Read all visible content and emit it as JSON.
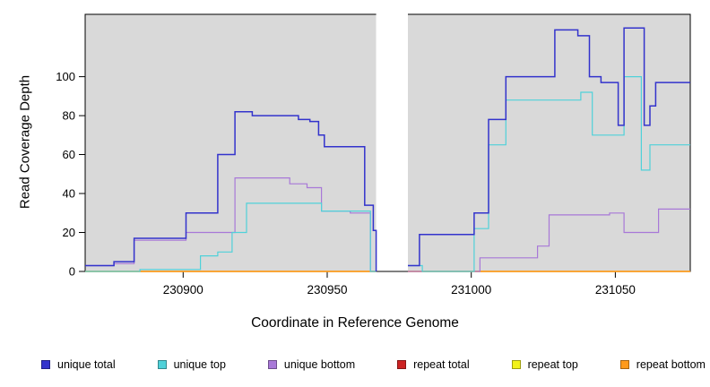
{
  "chart_data": {
    "type": "line",
    "step": true,
    "title": "",
    "xlabel": "Coordinate in Reference Genome",
    "ylabel": "Read Coverage Depth",
    "xlim": [
      230866,
      231076
    ],
    "ylim": [
      0,
      132
    ],
    "xticks": [
      230900,
      230950,
      231000,
      231050
    ],
    "yticks": [
      0,
      20,
      40,
      60,
      80,
      100
    ],
    "gap": [
      230967,
      230978
    ],
    "plot_bg": "#d9d9d9",
    "axis_color": "#000000",
    "legend_position": "bottom",
    "grid": false,
    "draw_order": [
      3,
      4,
      5,
      2,
      1,
      0
    ],
    "series": [
      {
        "name": "unique total",
        "color": "#3333cc",
        "w": 1.5,
        "segments": [
          [
            [
              230866,
              3
            ],
            [
              230876,
              5
            ],
            [
              230883,
              17
            ],
            [
              230901,
              30
            ],
            [
              230912,
              60
            ],
            [
              230918,
              82
            ],
            [
              230924,
              80
            ],
            [
              230940,
              78
            ],
            [
              230944,
              77
            ],
            [
              230947,
              70
            ],
            [
              230949,
              64
            ],
            [
              230963,
              34
            ],
            [
              230966,
              21
            ],
            [
              230967,
              0
            ]
          ],
          [
            [
              230978,
              3
            ],
            [
              230982,
              19
            ],
            [
              231001,
              30
            ],
            [
              231006,
              78
            ],
            [
              231012,
              100
            ],
            [
              231029,
              124
            ],
            [
              231037,
              121
            ],
            [
              231041,
              100
            ],
            [
              231045,
              97
            ],
            [
              231051,
              75
            ],
            [
              231053,
              125
            ],
            [
              231060,
              75
            ],
            [
              231062,
              85
            ],
            [
              231064,
              97
            ],
            [
              231076,
              97
            ]
          ]
        ]
      },
      {
        "name": "unique top",
        "color": "#4fd1d9",
        "w": 1.2,
        "segments": [
          [
            [
              230866,
              0
            ],
            [
              230885,
              1
            ],
            [
              230906,
              8
            ],
            [
              230912,
              10
            ],
            [
              230917,
              20
            ],
            [
              230922,
              35
            ],
            [
              230948,
              31
            ],
            [
              230965,
              0
            ],
            [
              230967,
              0
            ]
          ],
          [
            [
              230978,
              3
            ],
            [
              230983,
              0
            ],
            [
              231001,
              22
            ],
            [
              231006,
              65
            ],
            [
              231012,
              88
            ],
            [
              231038,
              92
            ],
            [
              231042,
              70
            ],
            [
              231053,
              100
            ],
            [
              231059,
              52
            ],
            [
              231062,
              65
            ],
            [
              231076,
              65
            ]
          ]
        ]
      },
      {
        "name": "unique bottom",
        "color": "#a878d8",
        "w": 1.2,
        "segments": [
          [
            [
              230866,
              3
            ],
            [
              230876,
              4
            ],
            [
              230883,
              16
            ],
            [
              230901,
              20
            ],
            [
              230918,
              48
            ],
            [
              230937,
              45
            ],
            [
              230943,
              43
            ],
            [
              230948,
              31
            ],
            [
              230958,
              30
            ],
            [
              230965,
              0
            ],
            [
              230967,
              0
            ]
          ],
          [
            [
              230978,
              0
            ],
            [
              231003,
              7
            ],
            [
              231023,
              13
            ],
            [
              231027,
              29
            ],
            [
              231048,
              30
            ],
            [
              231053,
              20
            ],
            [
              231065,
              32
            ],
            [
              231076,
              32
            ]
          ]
        ]
      },
      {
        "name": "repeat total",
        "color": "#cc2222",
        "w": 1.2,
        "segments": [
          [
            [
              230866,
              0
            ],
            [
              230967,
              0
            ]
          ],
          [
            [
              230978,
              0
            ],
            [
              231076,
              0
            ]
          ]
        ]
      },
      {
        "name": "repeat top",
        "color": "#f2f218",
        "w": 1.2,
        "segments": [
          [
            [
              230866,
              0
            ],
            [
              230967,
              0
            ]
          ],
          [
            [
              230978,
              0
            ],
            [
              231076,
              0
            ]
          ]
        ]
      },
      {
        "name": "repeat bottom",
        "color": "#ff9a1a",
        "w": 1.4,
        "segments": [
          [
            [
              230866,
              0
            ],
            [
              230967,
              0
            ]
          ],
          [
            [
              230978,
              0
            ],
            [
              231076,
              0
            ]
          ]
        ]
      }
    ]
  }
}
